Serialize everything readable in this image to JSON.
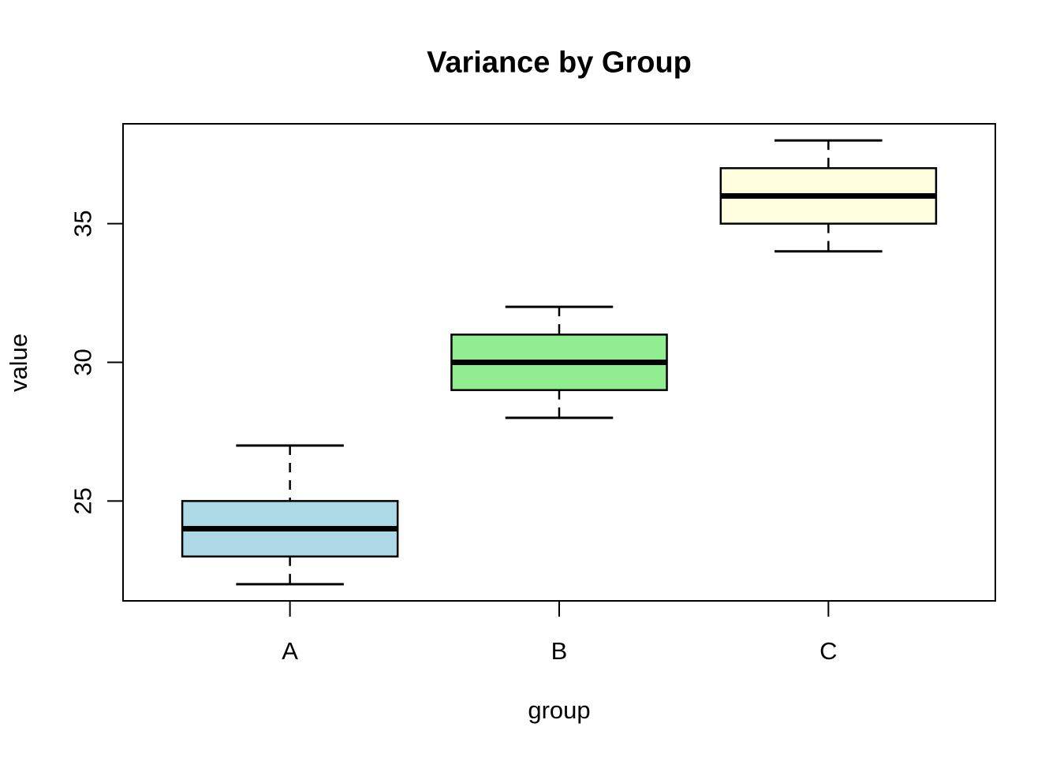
{
  "figure": {
    "background": "#FFFFFF"
  },
  "chart_data": {
    "type": "boxplot",
    "title": "Variance by Group",
    "xlabel": "group",
    "ylabel": "value",
    "categories": [
      "A",
      "B",
      "C"
    ],
    "series": [
      {
        "name": "A",
        "min": 22,
        "q1": 23,
        "median": 24,
        "q3": 25,
        "max": 27,
        "fill": "#ADD8E6"
      },
      {
        "name": "B",
        "min": 28,
        "q1": 29,
        "median": 30,
        "q3": 31,
        "max": 32,
        "fill": "#90EE90"
      },
      {
        "name": "C",
        "min": 34,
        "q1": 35,
        "median": 36,
        "q3": 37,
        "max": 38,
        "fill": "#FFFFE0"
      }
    ],
    "yticks": [
      25,
      30,
      35
    ],
    "ylim": [
      21.4,
      38.6
    ],
    "xlim": [
      0.38,
      3.62
    ],
    "box_width": 0.8,
    "cap_width": 0.4,
    "grid": false,
    "legend": "none",
    "colors": {
      "line": "#000000",
      "background": "#FFFFFF"
    }
  }
}
